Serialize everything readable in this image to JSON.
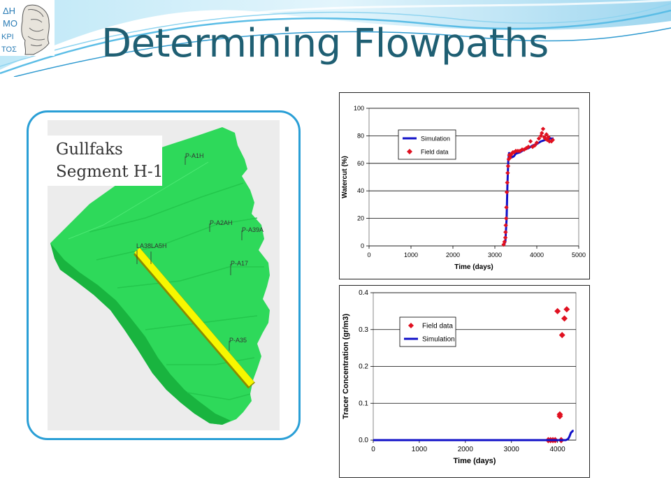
{
  "slide": {
    "title": "Determining Flowpaths",
    "logo_text": [
      "ΔΗ",
      "ΜΟ",
      "ΚΡΙ",
      "ΤΟΣ"
    ]
  },
  "reservoir": {
    "label_line1": "Gullfaks",
    "label_line2": "Segment H-1",
    "wells": [
      "P-A1H",
      "P-A2AH",
      "P-A39A",
      "P-A17",
      "P-A35",
      "LA38",
      "LA5H"
    ],
    "colors": {
      "body": "#22dd55",
      "flowpath": "#f5f500"
    }
  },
  "chart_data": [
    {
      "type": "scatter",
      "xlabel": "Time (days)",
      "ylabel": "Watercut (%)",
      "xlim": [
        0,
        5000
      ],
      "ylim": [
        0,
        100
      ],
      "xticks": [
        "0",
        "1000",
        "2000",
        "3000",
        "4000",
        "5000"
      ],
      "yticks": [
        "0",
        "20",
        "40",
        "60",
        "80",
        "100"
      ],
      "grid": "horizontal",
      "legend": "top-left",
      "series": [
        {
          "name": "Simulation",
          "kind": "line",
          "color": "#1010c8",
          "points": [
            [
              3200,
              0
            ],
            [
              3250,
              3
            ],
            [
              3280,
              20
            ],
            [
              3300,
              45
            ],
            [
              3320,
              62
            ],
            [
              3340,
              68
            ],
            [
              3380,
              64
            ],
            [
              3450,
              65
            ],
            [
              3500,
              67
            ],
            [
              3600,
              68
            ],
            [
              3700,
              70
            ],
            [
              3800,
              71
            ],
            [
              3900,
              73
            ],
            [
              4000,
              74
            ],
            [
              4100,
              76
            ],
            [
              4200,
              77
            ],
            [
              4300,
              78
            ],
            [
              4400,
              78
            ]
          ]
        },
        {
          "name": "Field data",
          "kind": "marker",
          "color": "#e01020",
          "points": [
            [
              3210,
              1
            ],
            [
              3230,
              3
            ],
            [
              3250,
              6
            ],
            [
              3255,
              10
            ],
            [
              3260,
              15
            ],
            [
              3270,
              20
            ],
            [
              3275,
              28
            ],
            [
              3285,
              39
            ],
            [
              3295,
              46
            ],
            [
              3305,
              53
            ],
            [
              3315,
              58
            ],
            [
              3330,
              63
            ],
            [
              3345,
              66
            ],
            [
              3360,
              64
            ],
            [
              3380,
              66
            ],
            [
              3400,
              67
            ],
            [
              3430,
              68
            ],
            [
              3460,
              68
            ],
            [
              3500,
              69
            ],
            [
              3550,
              69
            ],
            [
              3600,
              69
            ],
            [
              3650,
              70
            ],
            [
              3700,
              70
            ],
            [
              3750,
              71
            ],
            [
              3800,
              72
            ],
            [
              3850,
              76
            ],
            [
              3900,
              72
            ],
            [
              3950,
              73
            ],
            [
              4000,
              75
            ],
            [
              4050,
              78
            ],
            [
              4100,
              80
            ],
            [
              4120,
              82
            ],
            [
              4150,
              85
            ],
            [
              4180,
              79
            ],
            [
              4200,
              78
            ],
            [
              4230,
              81
            ],
            [
              4250,
              77
            ],
            [
              4280,
              79
            ],
            [
              4300,
              76
            ],
            [
              4350,
              76
            ],
            [
              4380,
              77
            ]
          ]
        }
      ]
    },
    {
      "type": "scatter",
      "xlabel": "Time (days)",
      "ylabel": "Tracer Concentration (gr/m3)",
      "xlim": [
        0,
        4400
      ],
      "ylim": [
        0,
        0.4
      ],
      "xticks": [
        "0",
        "1000",
        "2000",
        "3000",
        "4000"
      ],
      "yticks": [
        "0.0",
        "0.1",
        "0.2",
        "0.3",
        "0.4"
      ],
      "grid": "horizontal",
      "legend": "top-left",
      "series": [
        {
          "name": "Field data",
          "kind": "marker",
          "color": "#e01020",
          "points": [
            [
              3800,
              0
            ],
            [
              3850,
              0
            ],
            [
              3900,
              0
            ],
            [
              3950,
              0
            ],
            [
              4000,
              0.35
            ],
            [
              4050,
              0.07
            ],
            [
              4050,
              0.065
            ],
            [
              4080,
              0
            ],
            [
              4100,
              0.285
            ],
            [
              4150,
              0.33
            ],
            [
              4200,
              0.355
            ]
          ]
        },
        {
          "name": "Simulation",
          "kind": "line",
          "color": "#1010c8",
          "points": [
            [
              0,
              0
            ],
            [
              4180,
              0
            ],
            [
              4230,
              0.003
            ],
            [
              4260,
              0.01
            ],
            [
              4290,
              0.02
            ],
            [
              4330,
              0.025
            ],
            [
              4350,
              0.025
            ]
          ]
        }
      ]
    }
  ]
}
